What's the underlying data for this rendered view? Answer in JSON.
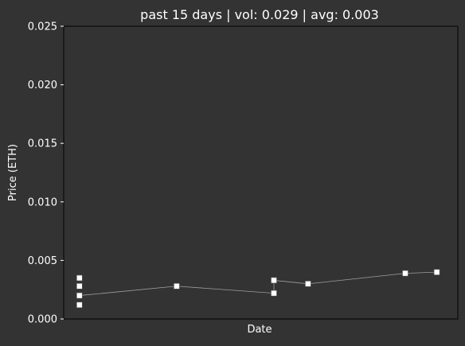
{
  "chart_data": {
    "type": "scatter",
    "title": "past 15 days | vol: 0.029 | avg: 0.003",
    "xlabel": "Date",
    "ylabel": "Price (ETH)",
    "ylim": [
      0,
      0.025
    ],
    "yticks": [
      "0.000",
      "0.005",
      "0.010",
      "0.015",
      "0.020",
      "0.025"
    ],
    "ytick_values": [
      0,
      0.005,
      0.01,
      0.015,
      0.02,
      0.025
    ],
    "xlim": [
      0,
      15
    ],
    "grid": false,
    "legend": "none",
    "colors": {
      "background": "#333333",
      "text": "#ffffff",
      "marker": "#ffffff",
      "line": "#a0a0a0"
    },
    "points": [
      {
        "x": 0.6,
        "y": 0.0035
      },
      {
        "x": 0.6,
        "y": 0.0028
      },
      {
        "x": 0.6,
        "y": 0.002
      },
      {
        "x": 0.6,
        "y": 0.0012
      },
      {
        "x": 4.3,
        "y": 0.0028
      },
      {
        "x": 8.0,
        "y": 0.0033
      },
      {
        "x": 8.0,
        "y": 0.0022
      },
      {
        "x": 9.3,
        "y": 0.003
      },
      {
        "x": 13.0,
        "y": 0.0039
      },
      {
        "x": 14.2,
        "y": 0.004
      }
    ],
    "trend_line": [
      {
        "x": 0.6,
        "y": 0.002
      },
      {
        "x": 4.3,
        "y": 0.0028
      },
      {
        "x": 8.0,
        "y": 0.0022
      },
      {
        "x": 8.0,
        "y": 0.0033
      },
      {
        "x": 9.3,
        "y": 0.003
      },
      {
        "x": 13.0,
        "y": 0.0039
      },
      {
        "x": 14.2,
        "y": 0.004
      }
    ]
  }
}
